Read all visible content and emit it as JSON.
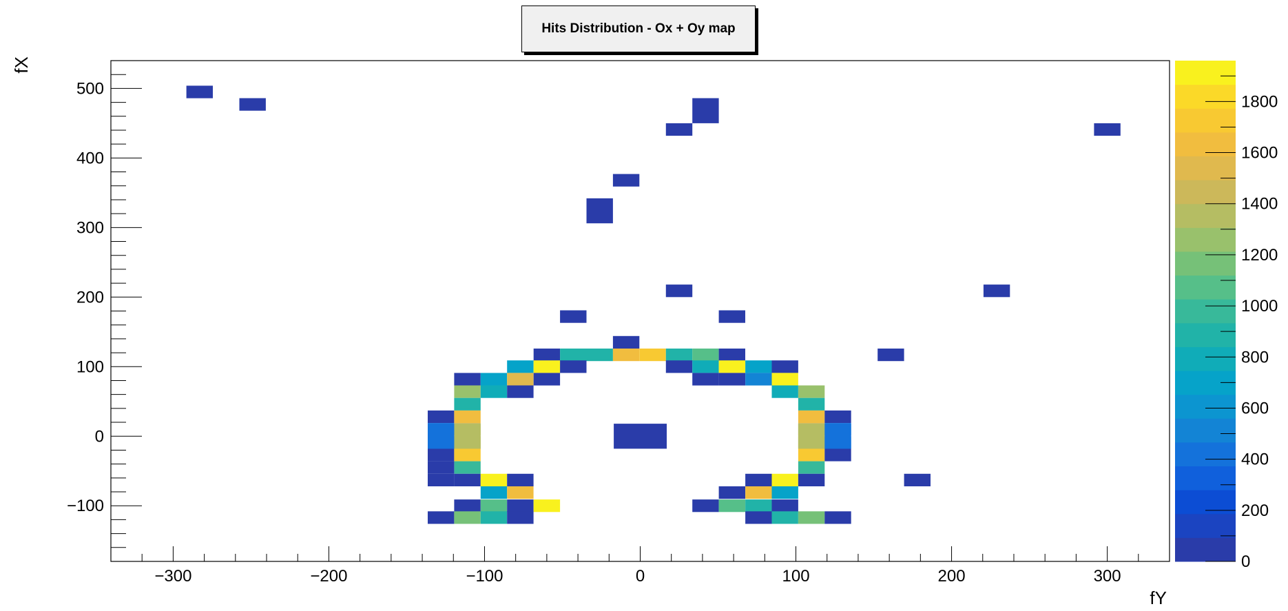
{
  "chart_data": {
    "type": "heatmap",
    "title": "Hits Distribution - Ox + Oy map",
    "xlabel": "fY",
    "ylabel": "fX",
    "xlim": [
      -340,
      340
    ],
    "ylim": [
      -180,
      540
    ],
    "xticks": [
      "−300",
      "−200",
      "−100",
      "0",
      "100",
      "200",
      "300"
    ],
    "xtick_values": [
      -300,
      -200,
      -100,
      0,
      100,
      200,
      300
    ],
    "yticks": [
      "−100",
      "0",
      "100",
      "200",
      "300",
      "400",
      "500"
    ],
    "ytick_values": [
      -100,
      0,
      100,
      200,
      300,
      400,
      500
    ],
    "zlim": [
      0,
      1960
    ],
    "zticks": [
      "0",
      "200",
      "400",
      "600",
      "800",
      "1000",
      "1200",
      "1400",
      "1600",
      "1800"
    ],
    "ztick_values": [
      0,
      200,
      400,
      600,
      800,
      1000,
      1200,
      1400,
      1600,
      1800
    ],
    "grid": false,
    "palette": [
      "#2a3ca9",
      "#1b44c1",
      "#0c4dd4",
      "#1060dc",
      "#1472db",
      "#1384d5",
      "#0c95d0",
      "#06a3c9",
      "#10acb8",
      "#21b3a8",
      "#38b99a",
      "#56bf89",
      "#76c178",
      "#99c16c",
      "#b5bd63",
      "#ccb85a",
      "#e0b94e",
      "#f1bd3f",
      "#f8c932",
      "#fbd928",
      "#f9f11e"
    ],
    "cells": [
      {
        "y": -283,
        "x": 495,
        "w": 17,
        "h": 18,
        "z": 60
      },
      {
        "y": -249,
        "x": 477,
        "w": 17,
        "h": 18,
        "z": 60
      },
      {
        "y": 42,
        "x": 468,
        "w": 17,
        "h": 36,
        "z": 60
      },
      {
        "y": 25,
        "x": 441,
        "w": 17,
        "h": 18,
        "z": 60
      },
      {
        "y": 300,
        "x": 441,
        "w": 17,
        "h": 18,
        "z": 60
      },
      {
        "y": -9,
        "x": 368,
        "w": 17,
        "h": 18,
        "z": 60
      },
      {
        "y": -26,
        "x": 324,
        "w": 17,
        "h": 36,
        "z": 60
      },
      {
        "y": 25,
        "x": 209,
        "w": 17,
        "h": 18,
        "z": 60
      },
      {
        "y": 229,
        "x": 209,
        "w": 17,
        "h": 18,
        "z": 60
      },
      {
        "y": -43,
        "x": 172,
        "w": 17,
        "h": 18,
        "z": 60
      },
      {
        "y": 59,
        "x": 172,
        "w": 17,
        "h": 18,
        "z": 60
      },
      {
        "y": -9,
        "x": 135,
        "w": 17,
        "h": 18,
        "z": 60
      },
      {
        "y": 161,
        "x": 117,
        "w": 17,
        "h": 18,
        "z": 60
      },
      {
        "y": 0,
        "x": 0,
        "w": 34,
        "h": 36,
        "z": 60
      },
      {
        "y": 178,
        "x": -63,
        "w": 17,
        "h": 18,
        "z": 60
      },
      {
        "y": -60,
        "x": 117,
        "w": 17,
        "h": 18,
        "z": 60
      },
      {
        "y": -43,
        "x": 117,
        "w": 17,
        "h": 18,
        "z": 900
      },
      {
        "y": -26,
        "x": 117,
        "w": 17,
        "h": 18,
        "z": 900
      },
      {
        "y": -9,
        "x": 117,
        "w": 17,
        "h": 18,
        "z": 1600
      },
      {
        "y": 8,
        "x": 117,
        "w": 17,
        "h": 18,
        "z": 1750
      },
      {
        "y": 25,
        "x": 117,
        "w": 17,
        "h": 18,
        "z": 900
      },
      {
        "y": 42,
        "x": 117,
        "w": 17,
        "h": 18,
        "z": 1100
      },
      {
        "y": 59,
        "x": 117,
        "w": 17,
        "h": 18,
        "z": 60
      },
      {
        "y": -77,
        "x": 100,
        "w": 17,
        "h": 18,
        "z": 700
      },
      {
        "y": -60,
        "x": 100,
        "w": 17,
        "h": 18,
        "z": 1950
      },
      {
        "y": -43,
        "x": 100,
        "w": 17,
        "h": 18,
        "z": 60
      },
      {
        "y": 25,
        "x": 100,
        "w": 17,
        "h": 18,
        "z": 60
      },
      {
        "y": 42,
        "x": 100,
        "w": 17,
        "h": 18,
        "z": 800
      },
      {
        "y": 59,
        "x": 100,
        "w": 17,
        "h": 18,
        "z": 1950
      },
      {
        "y": 76,
        "x": 100,
        "w": 17,
        "h": 18,
        "z": 700
      },
      {
        "y": 93,
        "x": 100,
        "w": 17,
        "h": 18,
        "z": 60
      },
      {
        "y": -111,
        "x": 82,
        "w": 17,
        "h": 18,
        "z": 60
      },
      {
        "y": -94,
        "x": 82,
        "w": 17,
        "h": 18,
        "z": 700
      },
      {
        "y": -77,
        "x": 82,
        "w": 17,
        "h": 18,
        "z": 1500
      },
      {
        "y": -60,
        "x": 82,
        "w": 17,
        "h": 18,
        "z": 60
      },
      {
        "y": 42,
        "x": 82,
        "w": 17,
        "h": 18,
        "z": 60
      },
      {
        "y": 59,
        "x": 82,
        "w": 17,
        "h": 18,
        "z": 60
      },
      {
        "y": 76,
        "x": 82,
        "w": 17,
        "h": 18,
        "z": 500
      },
      {
        "y": 93,
        "x": 82,
        "w": 17,
        "h": 18,
        "z": 1950
      },
      {
        "y": -111,
        "x": 64,
        "w": 17,
        "h": 18,
        "z": 1250
      },
      {
        "y": -94,
        "x": 64,
        "w": 17,
        "h": 18,
        "z": 800
      },
      {
        "y": -77,
        "x": 64,
        "w": 17,
        "h": 18,
        "z": 60
      },
      {
        "y": 93,
        "x": 64,
        "w": 17,
        "h": 18,
        "z": 800
      },
      {
        "y": 110,
        "x": 64,
        "w": 17,
        "h": 18,
        "z": 1250
      },
      {
        "y": -111,
        "x": 46,
        "w": 17,
        "h": 18,
        "z": 900
      },
      {
        "y": 110,
        "x": 46,
        "w": 17,
        "h": 18,
        "z": 900
      },
      {
        "y": -128,
        "x": 28,
        "w": 17,
        "h": 18,
        "z": 60
      },
      {
        "y": -111,
        "x": 28,
        "w": 17,
        "h": 18,
        "z": 1600
      },
      {
        "y": 110,
        "x": 28,
        "w": 17,
        "h": 18,
        "z": 1600
      },
      {
        "y": 127,
        "x": 28,
        "w": 17,
        "h": 18,
        "z": 60
      },
      {
        "y": -128,
        "x": 10,
        "w": 17,
        "h": 18,
        "z": 400
      },
      {
        "y": -111,
        "x": 10,
        "w": 17,
        "h": 18,
        "z": 1400
      },
      {
        "y": 110,
        "x": 10,
        "w": 17,
        "h": 18,
        "z": 1400
      },
      {
        "y": 127,
        "x": 10,
        "w": 17,
        "h": 18,
        "z": 400
      },
      {
        "y": -128,
        "x": -9,
        "w": 17,
        "h": 18,
        "z": 400
      },
      {
        "y": -111,
        "x": -9,
        "w": 17,
        "h": 18,
        "z": 1400
      },
      {
        "y": 110,
        "x": -9,
        "w": 17,
        "h": 18,
        "z": 1400
      },
      {
        "y": 127,
        "x": -9,
        "w": 17,
        "h": 18,
        "z": 400
      },
      {
        "y": -128,
        "x": -27,
        "w": 17,
        "h": 18,
        "z": 60
      },
      {
        "y": -111,
        "x": -27,
        "w": 17,
        "h": 18,
        "z": 1750
      },
      {
        "y": 110,
        "x": -27,
        "w": 17,
        "h": 18,
        "z": 1750
      },
      {
        "y": 127,
        "x": -27,
        "w": 17,
        "h": 18,
        "z": 60
      },
      {
        "y": -111,
        "x": -45,
        "w": 17,
        "h": 18,
        "z": 1000
      },
      {
        "y": 110,
        "x": -45,
        "w": 17,
        "h": 18,
        "z": 1000
      },
      {
        "y": -111,
        "x": -63,
        "w": 17,
        "h": 18,
        "z": 60
      },
      {
        "y": -94,
        "x": -63,
        "w": 17,
        "h": 18,
        "z": 1950
      },
      {
        "y": -77,
        "x": -63,
        "w": 17,
        "h": 18,
        "z": 60
      },
      {
        "y": 76,
        "x": -63,
        "w": 17,
        "h": 18,
        "z": 60
      },
      {
        "y": 93,
        "x": -63,
        "w": 17,
        "h": 18,
        "z": 1950
      },
      {
        "y": 110,
        "x": -63,
        "w": 17,
        "h": 18,
        "z": 60
      },
      {
        "y": -94,
        "x": -81,
        "w": 17,
        "h": 18,
        "z": 700
      },
      {
        "y": -77,
        "x": -81,
        "w": 17,
        "h": 18,
        "z": 1650
      },
      {
        "y": 59,
        "x": -81,
        "w": 17,
        "h": 18,
        "z": 60
      },
      {
        "y": 76,
        "x": -81,
        "w": 17,
        "h": 18,
        "z": 1650
      },
      {
        "y": 93,
        "x": -81,
        "w": 17,
        "h": 18,
        "z": 700
      },
      {
        "y": -111,
        "x": -100,
        "w": 17,
        "h": 18,
        "z": 60
      },
      {
        "y": -94,
        "x": -100,
        "w": 17,
        "h": 18,
        "z": 1100
      },
      {
        "y": -77,
        "x": -100,
        "w": 17,
        "h": 18,
        "z": 60
      },
      {
        "y": -60,
        "x": -100,
        "w": 17,
        "h": 18,
        "z": 1900
      },
      {
        "y": 42,
        "x": -100,
        "w": 17,
        "h": 18,
        "z": 60
      },
      {
        "y": 59,
        "x": -100,
        "w": 17,
        "h": 18,
        "z": 1100
      },
      {
        "y": 76,
        "x": -100,
        "w": 17,
        "h": 18,
        "z": 900
      },
      {
        "y": 93,
        "x": -100,
        "w": 17,
        "h": 18,
        "z": 60
      },
      {
        "y": -128,
        "x": -117,
        "w": 17,
        "h": 18,
        "z": 60
      },
      {
        "y": -111,
        "x": -117,
        "w": 17,
        "h": 18,
        "z": 1200
      },
      {
        "y": -94,
        "x": -117,
        "w": 17,
        "h": 18,
        "z": 900
      },
      {
        "y": -77,
        "x": -117,
        "w": 17,
        "h": 18,
        "z": 60
      },
      {
        "y": 76,
        "x": -117,
        "w": 17,
        "h": 18,
        "z": 60
      },
      {
        "y": 93,
        "x": -117,
        "w": 17,
        "h": 18,
        "z": 900
      },
      {
        "y": 110,
        "x": -117,
        "w": 17,
        "h": 18,
        "z": 1200
      },
      {
        "y": 127,
        "x": -117,
        "w": 17,
        "h": 18,
        "z": 60
      },
      {
        "y": -128,
        "x": -63,
        "w": 17,
        "h": 18,
        "z": 60
      },
      {
        "y": -128,
        "x": -45,
        "w": 17,
        "h": 18,
        "z": 60
      },
      {
        "y": -111,
        "x": 0,
        "w": 17,
        "h": 36,
        "z": 1350
      },
      {
        "y": 110,
        "x": 0,
        "w": 17,
        "h": 36,
        "z": 1350
      },
      {
        "y": -128,
        "x": 0,
        "w": 17,
        "h": 36,
        "z": 400
      },
      {
        "y": 127,
        "x": 0,
        "w": 17,
        "h": 36,
        "z": 400
      }
    ]
  }
}
